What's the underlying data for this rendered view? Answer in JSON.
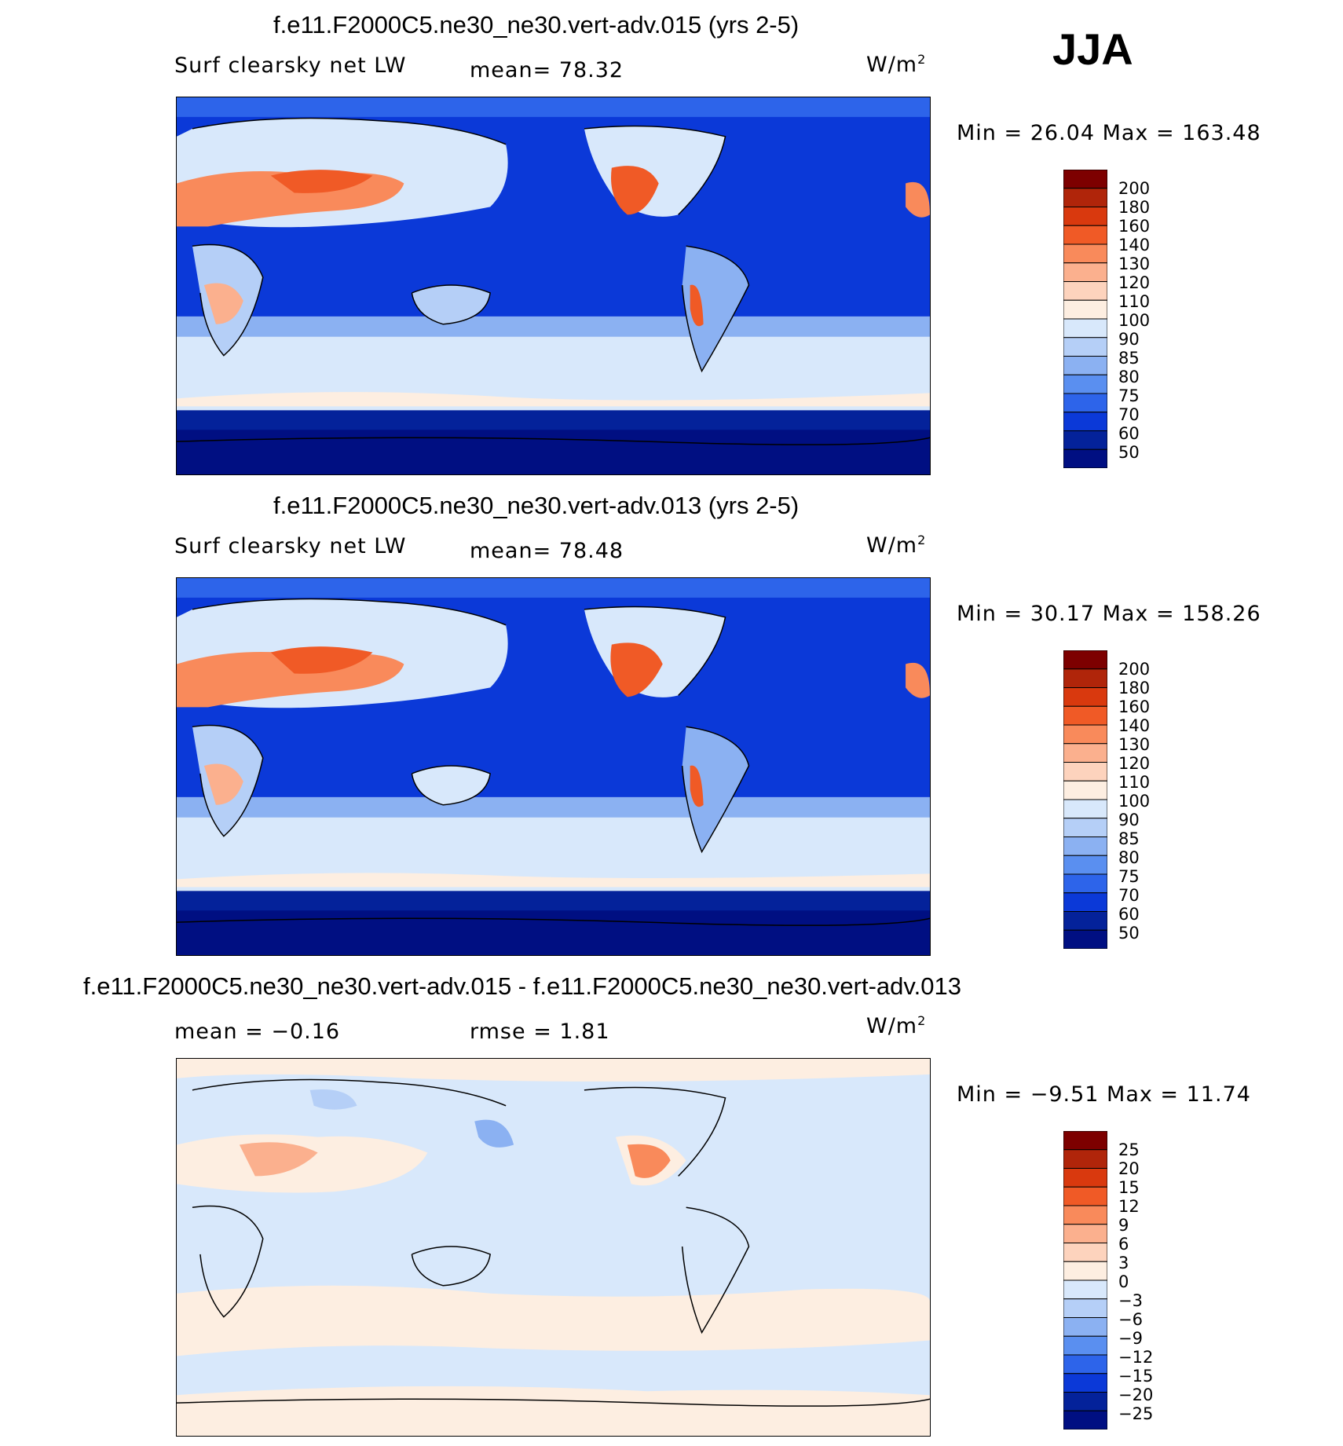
{
  "season": "JJA",
  "units": "W/m",
  "units_sup": "2",
  "panels": [
    {
      "title": "f.e11.F2000C5.ne30_ne30.vert-adv.015 (yrs 2-5)",
      "left_label": "Surf clearsky net LW",
      "mid_label": "mean=   78.32",
      "minmax": "Min =   26.04 Max =  163.48",
      "levels": [
        "200",
        "180",
        "160",
        "140",
        "130",
        "120",
        "110",
        "100",
        "90",
        "85",
        "80",
        "75",
        "70",
        "60",
        "50"
      ]
    },
    {
      "title": "f.e11.F2000C5.ne30_ne30.vert-adv.013 (yrs 2-5)",
      "left_label": "Surf clearsky net LW",
      "mid_label": "mean=   78.48",
      "minmax": "Min =   30.17 Max =  158.26",
      "levels": [
        "200",
        "180",
        "160",
        "140",
        "130",
        "120",
        "110",
        "100",
        "90",
        "85",
        "80",
        "75",
        "70",
        "60",
        "50"
      ]
    },
    {
      "title": "f.e11.F2000C5.ne30_ne30.vert-adv.015 - f.e11.F2000C5.ne30_ne30.vert-adv.013",
      "left_label": "mean =   −0.16",
      "mid_label": "rmse =    1.81",
      "minmax": "Min =  −9.51 Max =   11.74",
      "levels": [
        "25",
        "20",
        "15",
        "12",
        "9",
        "6",
        "3",
        "0",
        "−3",
        "−6",
        "−9",
        "−12",
        "−15",
        "−20",
        "−25"
      ]
    }
  ],
  "colors": {
    "scale": [
      "#7d0000",
      "#b0250a",
      "#d9390e",
      "#f05a26",
      "#f98a5b",
      "#fbb08e",
      "#fdd3bd",
      "#fdeee1",
      "#d8e8fb",
      "#b5cff7",
      "#8bb1f2",
      "#5a8ff0",
      "#2d64ea",
      "#0b39d8",
      "#04229a",
      "#000f82"
    ],
    "diff_ocean": "#d8e8fb",
    "diff_warm": "#fdd3bd"
  }
}
